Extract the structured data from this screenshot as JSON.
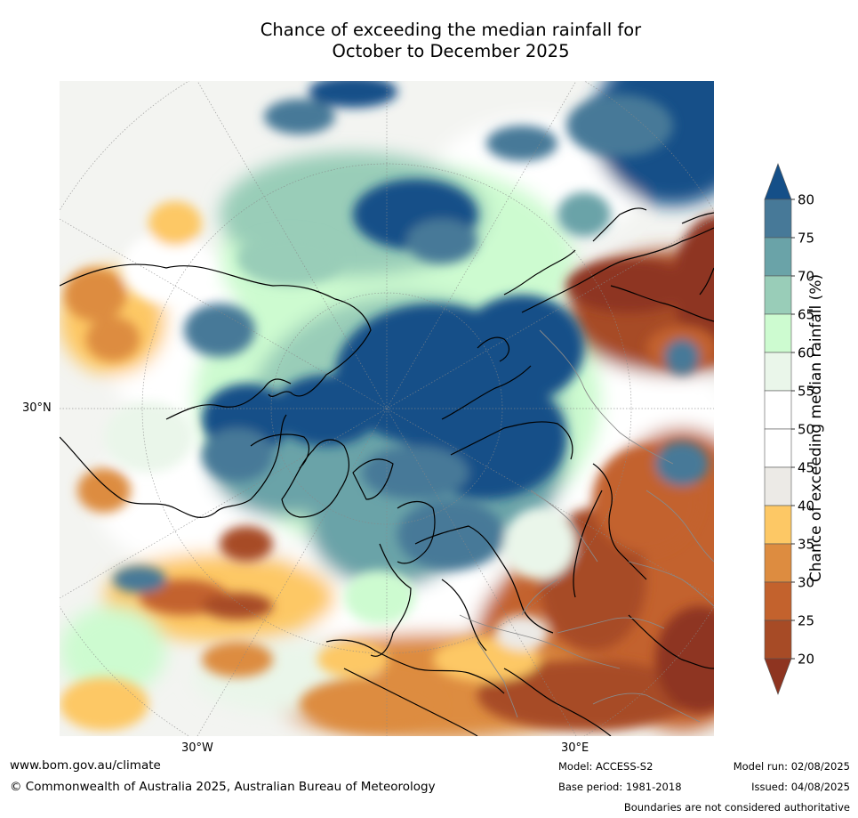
{
  "title": {
    "line1": "Chance of exceeding the median rainfall for",
    "line2": "October to December 2025"
  },
  "map": {
    "projection": "north-polar-stereographic",
    "lat_labels": [
      "30°N"
    ],
    "lon_labels": [
      "30°W",
      "30°E"
    ]
  },
  "colorbar": {
    "label": "Chance of exceeding median rainfall (%)",
    "ticks": [
      "80",
      "75",
      "70",
      "65",
      "60",
      "55",
      "50",
      "45",
      "40",
      "35",
      "30",
      "25",
      "20"
    ],
    "bins": [
      {
        "range": [
          80,
          100
        ],
        "color": "#154f88"
      },
      {
        "range": [
          75,
          80
        ],
        "color": "#477998"
      },
      {
        "range": [
          70,
          75
        ],
        "color": "#6aa3a8"
      },
      {
        "range": [
          65,
          70
        ],
        "color": "#99cdb8"
      },
      {
        "range": [
          60,
          65
        ],
        "color": "#cdfbd0"
      },
      {
        "range": [
          55,
          60
        ],
        "color": "#eaf6ea"
      },
      {
        "range": [
          50,
          55
        ],
        "color": "#ffffff"
      },
      {
        "range": [
          45,
          50
        ],
        "color": "#ffffff"
      },
      {
        "range": [
          40,
          45
        ],
        "color": "#eceae6"
      },
      {
        "range": [
          35,
          40
        ],
        "color": "#fdc865"
      },
      {
        "range": [
          30,
          35
        ],
        "color": "#dd8c40"
      },
      {
        "range": [
          25,
          30
        ],
        "color": "#c3622d"
      },
      {
        "range": [
          20,
          25
        ],
        "color": "#a74b26"
      },
      {
        "range": [
          0,
          20
        ],
        "color": "#8e3420"
      }
    ]
  },
  "footer": {
    "url": "www.bom.gov.au/climate",
    "copyright": "© Commonwealth of Australia 2025, Australian Bureau of Meteorology",
    "model": "Model: ACCESS-S2",
    "base_period": "Base period: 1981-2018",
    "model_run": "Model run: 02/08/2025",
    "issued": "Issued: 04/08/2025",
    "disclaimer": "Boundaries are not considered authoritative"
  }
}
